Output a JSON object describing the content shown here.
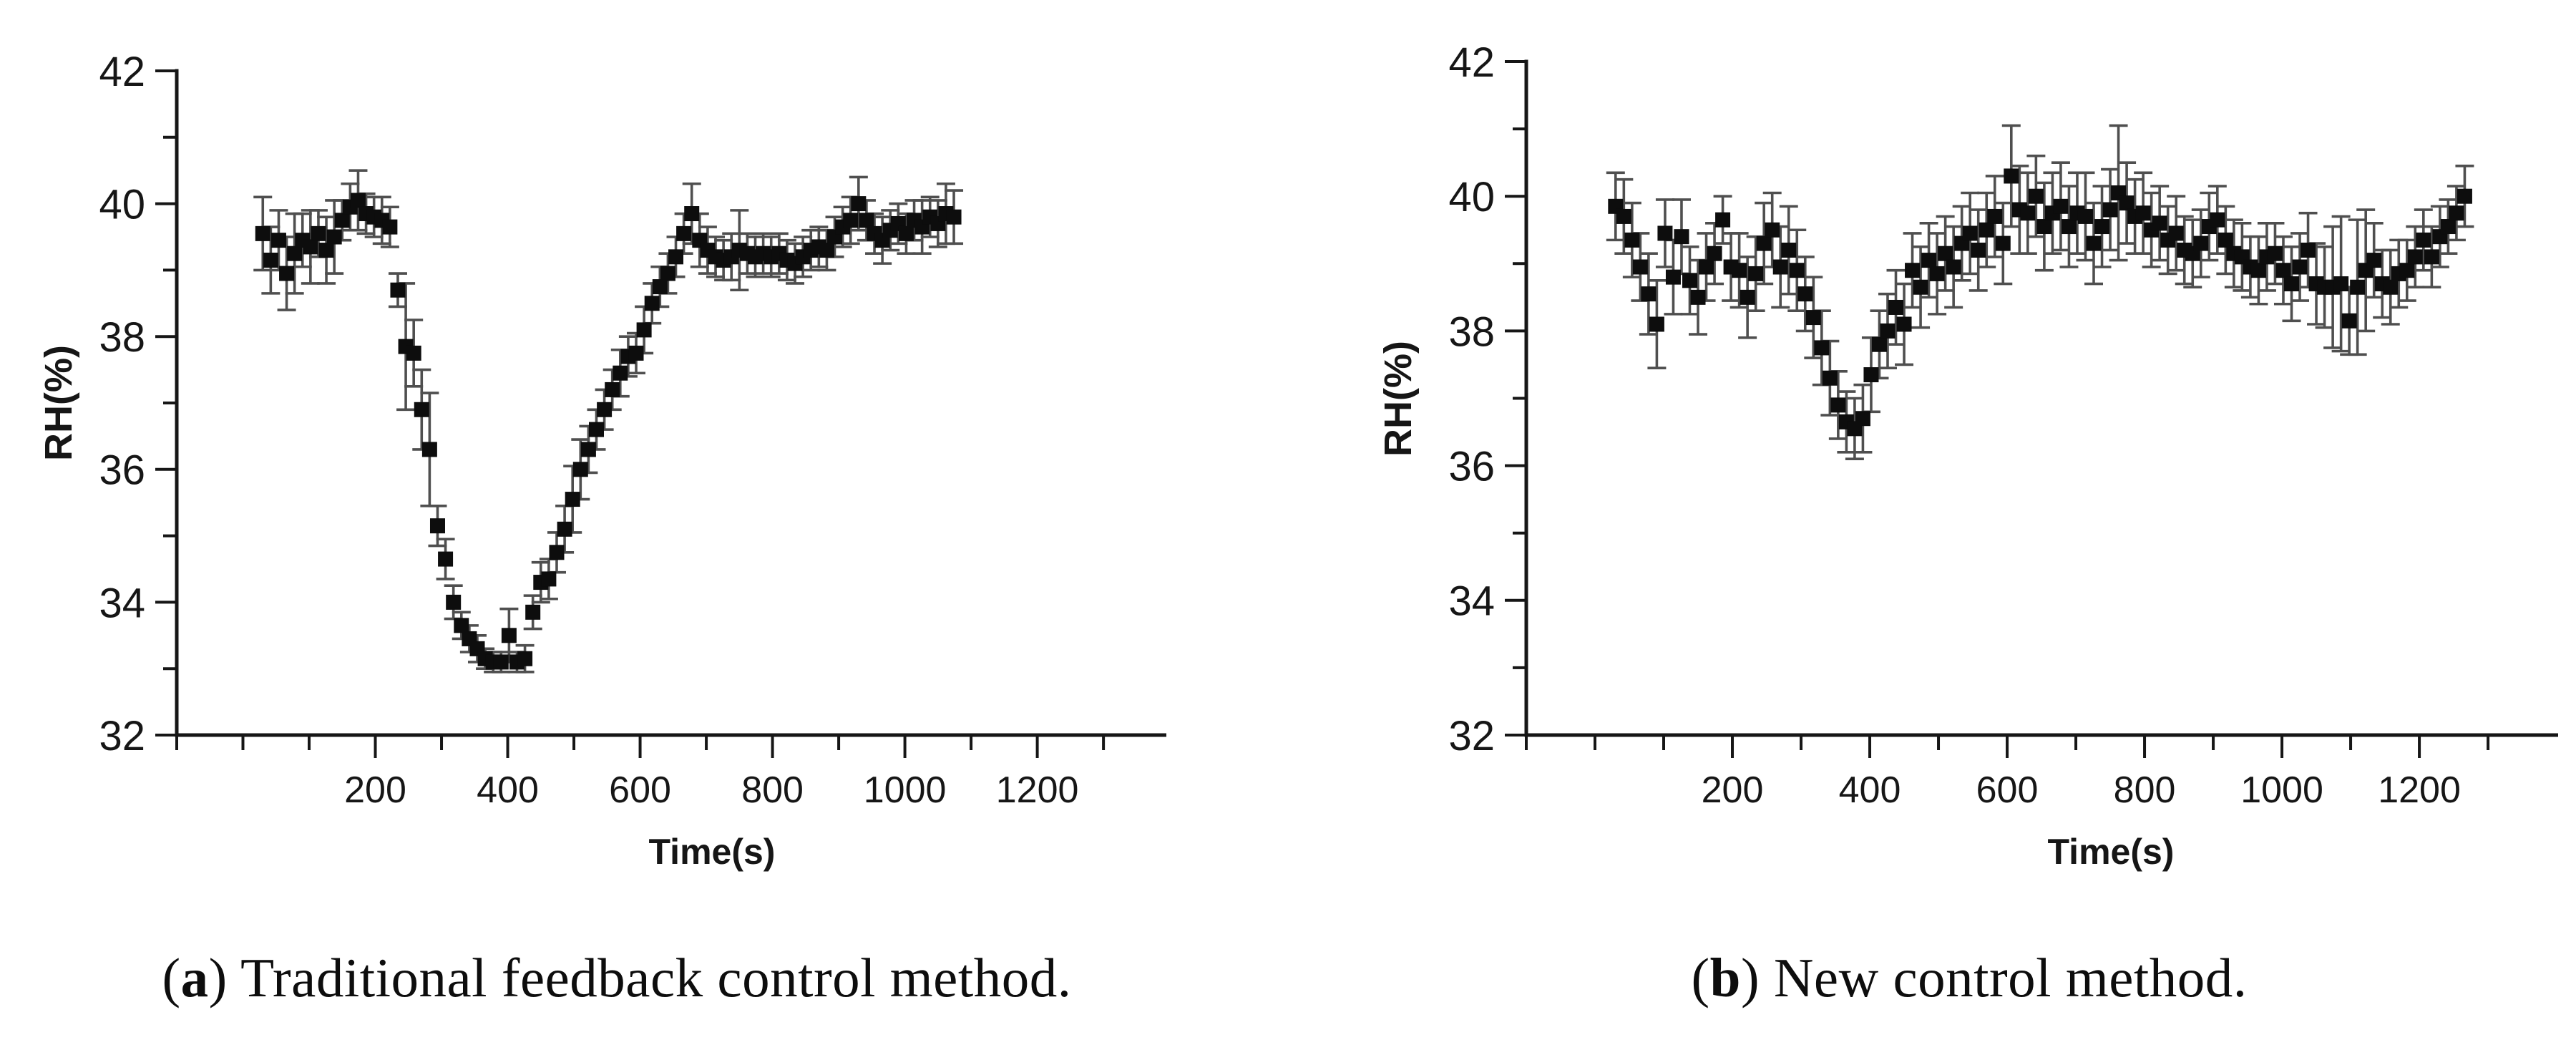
{
  "figure": {
    "background": "#ffffff",
    "panels": [
      {
        "id": "a",
        "caption": {
          "open": "(",
          "letter": "a",
          "rest": ") Traditional feedback control method."
        }
      },
      {
        "id": "b",
        "caption": {
          "open": "(",
          "letter": "b",
          "rest": ") New control method."
        }
      }
    ]
  },
  "chart_data": [
    {
      "type": "scatter",
      "title": "",
      "xlabel": "Time(s)",
      "ylabel": "RH(%)",
      "xlim": [
        -100,
        1395
      ],
      "ylim": [
        32,
        42
      ],
      "xticks_major": [
        200,
        400,
        600,
        800,
        1000,
        1200
      ],
      "xticks_minor": [
        -100,
        0,
        100,
        300,
        500,
        700,
        900,
        1100,
        1300
      ],
      "yticks_major": [
        42,
        40,
        38,
        36,
        34,
        32
      ],
      "yticks_minor": [
        41,
        39,
        37,
        35,
        33
      ],
      "grid": false,
      "legend": false,
      "marker": "filled-square",
      "marker_color": "#0d0d0d",
      "errorbar_color": "#4f4f4f",
      "axis_color": "#161616",
      "series": [
        {
          "name": "RH traditional feedback control",
          "points": [
            [
              30,
              39.55,
              0.55
            ],
            [
              42,
              39.15,
              0.5
            ],
            [
              54,
              39.45,
              0.45
            ],
            [
              66,
              38.95,
              0.55
            ],
            [
              78,
              39.25,
              0.6
            ],
            [
              90,
              39.45,
              0.4
            ],
            [
              102,
              39.35,
              0.55
            ],
            [
              114,
              39.55,
              0.35
            ],
            [
              126,
              39.3,
              0.5
            ],
            [
              138,
              39.5,
              0.55
            ],
            [
              150,
              39.75,
              0.3
            ],
            [
              162,
              39.95,
              0.35
            ],
            [
              174,
              40.05,
              0.45
            ],
            [
              186,
              39.85,
              0.3
            ],
            [
              198,
              39.8,
              0.3
            ],
            [
              210,
              39.75,
              0.35
            ],
            [
              222,
              39.65,
              0.3
            ],
            [
              234,
              38.7,
              0.25
            ],
            [
              246,
              37.85,
              0.95
            ],
            [
              258,
              37.75,
              0.5
            ],
            [
              270,
              36.9,
              0.6
            ],
            [
              282,
              36.3,
              0.85
            ],
            [
              294,
              35.15,
              0.3
            ],
            [
              306,
              34.65,
              0.3
            ],
            [
              318,
              34.0,
              0.25
            ],
            [
              330,
              33.65,
              0.2
            ],
            [
              342,
              33.45,
              0.2
            ],
            [
              354,
              33.3,
              0.2
            ],
            [
              366,
              33.15,
              0.15
            ],
            [
              378,
              33.1,
              0.15
            ],
            [
              390,
              33.1,
              0.15
            ],
            [
              402,
              33.5,
              0.4
            ],
            [
              414,
              33.1,
              0.15
            ],
            [
              426,
              33.15,
              0.2
            ],
            [
              438,
              33.85,
              0.25
            ],
            [
              450,
              34.3,
              0.3
            ],
            [
              462,
              34.35,
              0.3
            ],
            [
              474,
              34.75,
              0.3
            ],
            [
              486,
              35.1,
              0.35
            ],
            [
              498,
              35.55,
              0.5
            ],
            [
              510,
              36.0,
              0.45
            ],
            [
              522,
              36.3,
              0.35
            ],
            [
              534,
              36.6,
              0.3
            ],
            [
              546,
              36.9,
              0.3
            ],
            [
              558,
              37.2,
              0.3
            ],
            [
              570,
              37.45,
              0.35
            ],
            [
              582,
              37.7,
              0.3
            ],
            [
              594,
              37.75,
              0.3
            ],
            [
              606,
              38.1,
              0.35
            ],
            [
              618,
              38.5,
              0.3
            ],
            [
              630,
              38.75,
              0.3
            ],
            [
              642,
              38.95,
              0.3
            ],
            [
              654,
              39.2,
              0.3
            ],
            [
              666,
              39.55,
              0.3
            ],
            [
              678,
              39.85,
              0.45
            ],
            [
              690,
              39.45,
              0.4
            ],
            [
              702,
              39.3,
              0.35
            ],
            [
              714,
              39.2,
              0.3
            ],
            [
              726,
              39.15,
              0.3
            ],
            [
              738,
              39.2,
              0.35
            ],
            [
              750,
              39.3,
              0.6
            ],
            [
              762,
              39.25,
              0.3
            ],
            [
              774,
              39.2,
              0.3
            ],
            [
              786,
              39.25,
              0.3
            ],
            [
              798,
              39.2,
              0.3
            ],
            [
              810,
              39.25,
              0.3
            ],
            [
              822,
              39.15,
              0.3
            ],
            [
              834,
              39.1,
              0.3
            ],
            [
              846,
              39.2,
              0.3
            ],
            [
              858,
              39.3,
              0.3
            ],
            [
              870,
              39.35,
              0.3
            ],
            [
              882,
              39.3,
              0.3
            ],
            [
              894,
              39.5,
              0.3
            ],
            [
              906,
              39.65,
              0.3
            ],
            [
              918,
              39.75,
              0.35
            ],
            [
              930,
              40.0,
              0.4
            ],
            [
              942,
              39.75,
              0.3
            ],
            [
              954,
              39.55,
              0.3
            ],
            [
              966,
              39.45,
              0.35
            ],
            [
              978,
              39.6,
              0.3
            ],
            [
              990,
              39.7,
              0.3
            ],
            [
              1002,
              39.55,
              0.3
            ],
            [
              1014,
              39.75,
              0.3
            ],
            [
              1026,
              39.65,
              0.4
            ],
            [
              1038,
              39.8,
              0.3
            ],
            [
              1050,
              39.7,
              0.35
            ],
            [
              1062,
              39.85,
              0.45
            ],
            [
              1074,
              39.8,
              0.4
            ]
          ]
        }
      ]
    },
    {
      "type": "scatter",
      "title": "",
      "xlabel": "Time(s)",
      "ylabel": "RH(%)",
      "xlim": [
        -100,
        1402
      ],
      "ylim": [
        32,
        42
      ],
      "xticks_major": [
        200,
        400,
        600,
        800,
        1000,
        1200
      ],
      "xticks_minor": [
        -100,
        0,
        100,
        300,
        500,
        700,
        900,
        1100,
        1300
      ],
      "yticks_major": [
        42,
        40,
        38,
        36,
        34,
        32
      ],
      "yticks_minor": [
        41,
        39,
        37,
        35,
        33
      ],
      "grid": false,
      "legend": false,
      "marker": "filled-square",
      "marker_color": "#0d0d0d",
      "errorbar_color": "#4f4f4f",
      "axis_color": "#161616",
      "series": [
        {
          "name": "RH new control method",
          "points": [
            [
              30,
              39.85,
              0.5
            ],
            [
              42,
              39.7,
              0.55
            ],
            [
              54,
              39.35,
              0.55
            ],
            [
              66,
              38.95,
              0.5
            ],
            [
              78,
              38.55,
              0.6
            ],
            [
              90,
              38.1,
              0.65
            ],
            [
              102,
              39.45,
              0.5
            ],
            [
              114,
              38.8,
              0.55
            ],
            [
              126,
              39.4,
              0.55
            ],
            [
              138,
              38.75,
              0.5
            ],
            [
              150,
              38.5,
              0.55
            ],
            [
              162,
              38.95,
              0.5
            ],
            [
              174,
              39.15,
              0.45
            ],
            [
              186,
              39.65,
              0.35
            ],
            [
              198,
              38.95,
              0.5
            ],
            [
              210,
              38.9,
              0.55
            ],
            [
              222,
              38.5,
              0.6
            ],
            [
              234,
              38.85,
              0.55
            ],
            [
              246,
              39.3,
              0.6
            ],
            [
              258,
              39.5,
              0.55
            ],
            [
              270,
              38.95,
              0.6
            ],
            [
              282,
              39.2,
              0.65
            ],
            [
              294,
              38.9,
              0.6
            ],
            [
              306,
              38.55,
              0.55
            ],
            [
              318,
              38.2,
              0.6
            ],
            [
              330,
              37.75,
              0.55
            ],
            [
              342,
              37.3,
              0.55
            ],
            [
              354,
              36.9,
              0.5
            ],
            [
              366,
              36.65,
              0.45
            ],
            [
              378,
              36.55,
              0.45
            ],
            [
              390,
              36.7,
              0.5
            ],
            [
              402,
              37.35,
              0.55
            ],
            [
              414,
              37.8,
              0.5
            ],
            [
              426,
              38.0,
              0.55
            ],
            [
              438,
              38.35,
              0.55
            ],
            [
              450,
              38.1,
              0.6
            ],
            [
              462,
              38.9,
              0.55
            ],
            [
              474,
              38.65,
              0.6
            ],
            [
              486,
              39.05,
              0.55
            ],
            [
              498,
              38.85,
              0.6
            ],
            [
              510,
              39.15,
              0.55
            ],
            [
              522,
              38.95,
              0.6
            ],
            [
              534,
              39.3,
              0.55
            ],
            [
              546,
              39.45,
              0.6
            ],
            [
              558,
              39.2,
              0.6
            ],
            [
              570,
              39.5,
              0.55
            ],
            [
              582,
              39.7,
              0.6
            ],
            [
              594,
              39.3,
              0.6
            ],
            [
              606,
              40.3,
              0.75
            ],
            [
              618,
              39.8,
              0.65
            ],
            [
              630,
              39.75,
              0.6
            ],
            [
              642,
              40.0,
              0.6
            ],
            [
              654,
              39.55,
              0.65
            ],
            [
              666,
              39.75,
              0.6
            ],
            [
              678,
              39.85,
              0.65
            ],
            [
              690,
              39.55,
              0.6
            ],
            [
              702,
              39.75,
              0.6
            ],
            [
              714,
              39.7,
              0.65
            ],
            [
              726,
              39.3,
              0.6
            ],
            [
              738,
              39.55,
              0.6
            ],
            [
              750,
              39.8,
              0.6
            ],
            [
              762,
              40.05,
              1.0
            ],
            [
              774,
              39.9,
              0.6
            ],
            [
              786,
              39.7,
              0.55
            ],
            [
              798,
              39.75,
              0.6
            ],
            [
              810,
              39.5,
              0.55
            ],
            [
              822,
              39.6,
              0.55
            ],
            [
              834,
              39.35,
              0.5
            ],
            [
              846,
              39.45,
              0.55
            ],
            [
              858,
              39.2,
              0.5
            ],
            [
              870,
              39.15,
              0.5
            ],
            [
              882,
              39.3,
              0.5
            ],
            [
              894,
              39.55,
              0.5
            ],
            [
              906,
              39.65,
              0.5
            ],
            [
              918,
              39.35,
              0.5
            ],
            [
              930,
              39.15,
              0.5
            ],
            [
              942,
              39.1,
              0.5
            ],
            [
              954,
              38.95,
              0.45
            ],
            [
              966,
              38.9,
              0.5
            ],
            [
              978,
              39.1,
              0.5
            ],
            [
              990,
              39.15,
              0.45
            ],
            [
              1002,
              38.9,
              0.5
            ],
            [
              1014,
              38.7,
              0.55
            ],
            [
              1026,
              38.95,
              0.5
            ],
            [
              1038,
              39.2,
              0.55
            ],
            [
              1050,
              38.7,
              0.6
            ],
            [
              1062,
              38.65,
              0.6
            ],
            [
              1074,
              38.65,
              0.9
            ],
            [
              1086,
              38.7,
              1.0
            ],
            [
              1098,
              38.15,
              0.5
            ],
            [
              1110,
              38.65,
              1.0
            ],
            [
              1122,
              38.9,
              0.9
            ],
            [
              1134,
              39.05,
              0.55
            ],
            [
              1146,
              38.7,
              0.5
            ],
            [
              1158,
              38.65,
              0.55
            ],
            [
              1170,
              38.85,
              0.5
            ],
            [
              1182,
              38.9,
              0.45
            ],
            [
              1194,
              39.1,
              0.45
            ],
            [
              1206,
              39.35,
              0.45
            ],
            [
              1218,
              39.1,
              0.45
            ],
            [
              1230,
              39.4,
              0.45
            ],
            [
              1242,
              39.55,
              0.4
            ],
            [
              1254,
              39.75,
              0.4
            ],
            [
              1266,
              40.0,
              0.45
            ]
          ]
        }
      ]
    }
  ]
}
